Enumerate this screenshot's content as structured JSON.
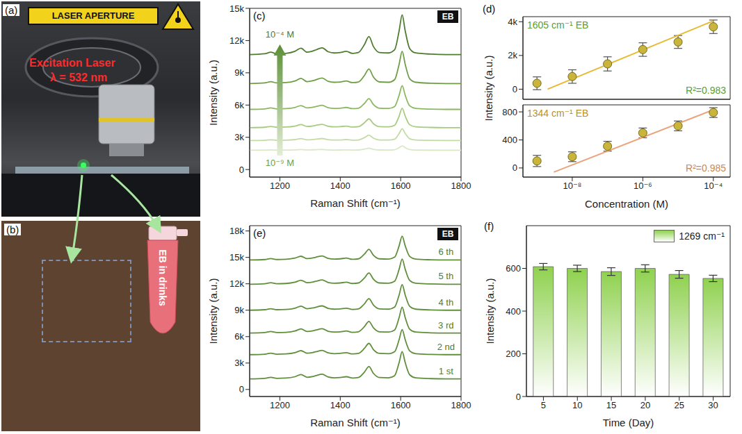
{
  "panels": {
    "a": {
      "label": "(a)",
      "aperture_sign": "LASER APERTURE",
      "laser_label": "Excitation Laser",
      "wavelength": "λ = 532 nm"
    },
    "b": {
      "label": "(b)",
      "tube_label": "EB in drinks"
    }
  },
  "chart_data": [
    {
      "panel": "(c)",
      "type": "line",
      "badge": "EB",
      "x_label": "Raman Shift (cm⁻¹)",
      "y_label": "Intensity (a.u.)",
      "x": [
        1100,
        1150,
        1170,
        1190,
        1220,
        1250,
        1270,
        1290,
        1310,
        1320,
        1340,
        1360,
        1380,
        1400,
        1420,
        1440,
        1460,
        1480,
        1495,
        1510,
        1530,
        1560,
        1580,
        1595,
        1605,
        1615,
        1630,
        1650,
        1700,
        1750,
        1800
      ],
      "xlim": [
        1100,
        1800
      ],
      "xticks": [
        1200,
        1400,
        1600,
        1800
      ],
      "ylim": [
        -700,
        15000
      ],
      "yticks": [
        0,
        {
          "value": 3000,
          "label": "3k"
        },
        {
          "value": 6000,
          "label": "6k"
        },
        {
          "value": 9000,
          "label": "9k"
        },
        {
          "value": 12000,
          "label": "12k"
        },
        {
          "value": 15000,
          "label": "15k"
        }
      ],
      "series": [
        {
          "name": "10⁻⁹ M",
          "color": "#dbe8c6",
          "values": [
            1800,
            1808,
            1824,
            1808,
            1812,
            1832,
            1864,
            1824,
            1836,
            1848,
            1868,
            1828,
            1816,
            1820,
            1832,
            1812,
            1820,
            1900,
            1980,
            1880,
            1820,
            1816,
            1848,
            2040,
            2200,
            2040,
            1860,
            1816,
            1804,
            1800,
            1800
          ]
        },
        {
          "color": "#c3dba5",
          "values": [
            2700,
            2722,
            2766,
            2722,
            2733,
            2788,
            2876,
            2766,
            2799,
            2832,
            2887,
            2777,
            2744,
            2755,
            2788,
            2733,
            2755,
            2975,
            3195,
            2920,
            2755,
            2744,
            2832,
            3360,
            3800,
            3360,
            2865,
            2744,
            2711,
            2700,
            2700
          ]
        },
        {
          "color": "#a7cc80",
          "values": [
            3900,
            3936,
            4008,
            3936,
            3954,
            4044,
            4188,
            4008,
            4062,
            4116,
            4206,
            4026,
            3972,
            3990,
            4044,
            3954,
            3990,
            4350,
            4710,
            4260,
            3990,
            3972,
            4116,
            4980,
            5700,
            4980,
            4170,
            3972,
            3918,
            3900,
            3900
          ]
        },
        {
          "color": "#8ab85f",
          "values": [
            5600,
            5644,
            5732,
            5644,
            5666,
            5776,
            5952,
            5732,
            5798,
            5864,
            5974,
            5754,
            5688,
            5710,
            5776,
            5666,
            5710,
            6150,
            6590,
            6040,
            5710,
            5688,
            5864,
            6920,
            7800,
            6920,
            5930,
            5688,
            5622,
            5600,
            5600
          ]
        },
        {
          "color": "#6e9e45",
          "values": [
            8000,
            8060,
            8180,
            8060,
            8090,
            8240,
            8480,
            8180,
            8270,
            8360,
            8510,
            8210,
            8120,
            8150,
            8240,
            8090,
            8150,
            8750,
            9350,
            8600,
            8150,
            8120,
            8360,
            9800,
            11000,
            9800,
            8450,
            8120,
            8030,
            8000,
            8000
          ]
        },
        {
          "name": "10⁻⁴ M",
          "color": "#4e7d30",
          "values": [
            10700,
            10770,
            10920,
            10770,
            10810,
            11000,
            11290,
            10920,
            11030,
            11140,
            11330,
            10960,
            10850,
            10890,
            11000,
            10810,
            10890,
            11630,
            12370,
            11440,
            10890,
            10850,
            11140,
            12920,
            14400,
            12920,
            11260,
            10850,
            10740,
            10700,
            10700
          ]
        }
      ]
    },
    {
      "panel": "(d)",
      "type": "scatter",
      "title": "1605 cm⁻¹ EB",
      "annotation": "R²=0.983",
      "y_label": "Intensity (a.u.)",
      "log": "x",
      "tick_labels": "y",
      "color": "#c9b53c",
      "x": [
        1e-09,
        1e-08,
        1e-07,
        1e-06,
        1e-05,
        0.0001
      ],
      "values": [
        350,
        750,
        1500,
        2350,
        2800,
        3700
      ],
      "errors": [
        380,
        400,
        420,
        400,
        380,
        400
      ],
      "fit": {
        "color": "#e8b92e",
        "x": [
          2e-09,
          0.0001
        ],
        "values": [
          0,
          4050
        ]
      },
      "xlim": [
        4e-10,
        0.0003
      ],
      "xticks": [
        {
          "value": 1e-08,
          "label": "10⁻⁸"
        },
        {
          "value": 1e-06,
          "label": "10⁻⁶"
        },
        {
          "value": 0.0001,
          "label": "10⁻⁴"
        }
      ],
      "ylim": [
        -600,
        4300
      ],
      "yticks": [
        0,
        {
          "value": 2000,
          "label": "2k"
        },
        {
          "value": 4000,
          "label": "4k"
        }
      ]
    },
    {
      "type": "scatter",
      "title": "1344 cm⁻¹ EB",
      "annotation": "R²=0.985",
      "x_label": "Concentration (M)",
      "log": "x",
      "color": "#c9b53c",
      "x": [
        1e-09,
        1e-08,
        1e-07,
        1e-06,
        1e-05,
        0.0001
      ],
      "values": [
        100,
        160,
        310,
        500,
        600,
        790
      ],
      "errors": [
        80,
        70,
        70,
        70,
        70,
        70
      ],
      "fit": {
        "color": "#eba47a",
        "x": [
          3e-09,
          0.0001
        ],
        "values": [
          -60,
          830
        ]
      },
      "xlim": [
        4e-10,
        0.0003
      ],
      "xticks": [
        {
          "value": 1e-08,
          "label": "10⁻⁸"
        },
        {
          "value": 1e-06,
          "label": "10⁻⁶"
        },
        {
          "value": 0.0001,
          "label": "10⁻⁴"
        }
      ],
      "ylim": [
        -130,
        900
      ],
      "yticks": [
        0,
        400,
        800
      ]
    },
    {
      "panel": "(e)",
      "type": "line",
      "badge": "EB",
      "x_label": "Raman Shift (cm⁻¹)",
      "y_label": "Intensity (a.u.)",
      "x": [
        1100,
        1150,
        1170,
        1190,
        1220,
        1250,
        1270,
        1290,
        1310,
        1320,
        1340,
        1360,
        1380,
        1400,
        1420,
        1440,
        1460,
        1480,
        1495,
        1510,
        1530,
        1560,
        1580,
        1595,
        1605,
        1615,
        1630,
        1650,
        1700,
        1750,
        1800
      ],
      "xlim": [
        1100,
        1800
      ],
      "xticks": [
        1200,
        1400,
        1600,
        1800
      ],
      "ylim": [
        -800,
        18600
      ],
      "yticks": [
        0,
        {
          "value": 3000,
          "label": "3k"
        },
        {
          "value": 6000,
          "label": "6k"
        },
        {
          "value": 9000,
          "label": "9k"
        },
        {
          "value": 12000,
          "label": "12k"
        },
        {
          "value": 15000,
          "label": "15k"
        },
        {
          "value": 18000,
          "label": "18k"
        }
      ],
      "series": [
        {
          "name": "1 st",
          "color": "#5f8f3a",
          "values": [
            1200,
            1262,
            1386,
            1262,
            1293,
            1448,
            1696,
            1386,
            1479,
            1572,
            1727,
            1417,
            1324,
            1355,
            1448,
            1293,
            1355,
            1975,
            2595,
            1820,
            1355,
            1324,
            1572,
            3060,
            4300,
            3060,
            1665,
            1324,
            1231,
            1200,
            1200
          ]
        },
        {
          "name": "2 nd",
          "color": "#5f8f3a",
          "values": [
            3950,
            4007,
            4121,
            4007,
            4036,
            4178,
            4406,
            4121,
            4207,
            4292,
            4435,
            4150,
            4064,
            4093,
            4178,
            4036,
            4093,
            4663,
            5233,
            4520,
            4093,
            4064,
            4292,
            5660,
            6800,
            5660,
            4378,
            4064,
            3979,
            3950,
            3950
          ]
        },
        {
          "name": "3 rd",
          "color": "#5f8f3a",
          "values": [
            6400,
            6459,
            6577,
            6459,
            6489,
            6636,
            6872,
            6577,
            6666,
            6754,
            6902,
            6607,
            6518,
            6548,
            6636,
            6489,
            6548,
            7138,
            7728,
            6990,
            6548,
            6518,
            6754,
            8170,
            9350,
            8170,
            6843,
            6518,
            6430,
            6400,
            6400
          ]
        },
        {
          "name": "4 th",
          "color": "#5f8f3a",
          "values": [
            9000,
            9058,
            9174,
            9058,
            9087,
            9232,
            9464,
            9174,
            9261,
            9348,
            9493,
            9203,
            9116,
            9145,
            9232,
            9087,
            9145,
            9725,
            10305,
            9580,
            9145,
            9116,
            9348,
            10740,
            11900,
            10740,
            9435,
            9116,
            9029,
            9000,
            9000
          ]
        },
        {
          "name": "5 th",
          "color": "#5f8f3a",
          "values": [
            11950,
            12007,
            12121,
            12007,
            12036,
            12178,
            12406,
            12121,
            12207,
            12292,
            12435,
            12150,
            12064,
            12093,
            12178,
            12036,
            12093,
            12663,
            13233,
            12520,
            12093,
            12064,
            12292,
            13660,
            14800,
            13660,
            12378,
            12064,
            11979,
            11950,
            11950
          ]
        },
        {
          "name": "6 th",
          "color": "#5f8f3a",
          "values": [
            14700,
            14754,
            14862,
            14754,
            14781,
            14916,
            15132,
            14862,
            14943,
            15024,
            15159,
            14889,
            14808,
            14835,
            14916,
            14781,
            14835,
            15375,
            15915,
            15240,
            14835,
            14808,
            15024,
            16320,
            17400,
            16320,
            15105,
            14808,
            14727,
            14700,
            14700
          ]
        }
      ]
    },
    {
      "panel": "(f)",
      "type": "bar",
      "x_label": "Time (Day)",
      "y_label": "Intensity (a.u.)",
      "legend": "upper right",
      "categories": [
        "5",
        "10",
        "15",
        "20",
        "25",
        "30"
      ],
      "series": [
        {
          "name": "1269 cm⁻¹",
          "color": "#8fd14f",
          "values": [
            608,
            600,
            585,
            600,
            572,
            553
          ],
          "errors": [
            15,
            15,
            18,
            17,
            18,
            15
          ]
        }
      ],
      "ylim": [
        0,
        800
      ],
      "yticks": [
        0,
        200,
        400,
        600
      ]
    }
  ]
}
